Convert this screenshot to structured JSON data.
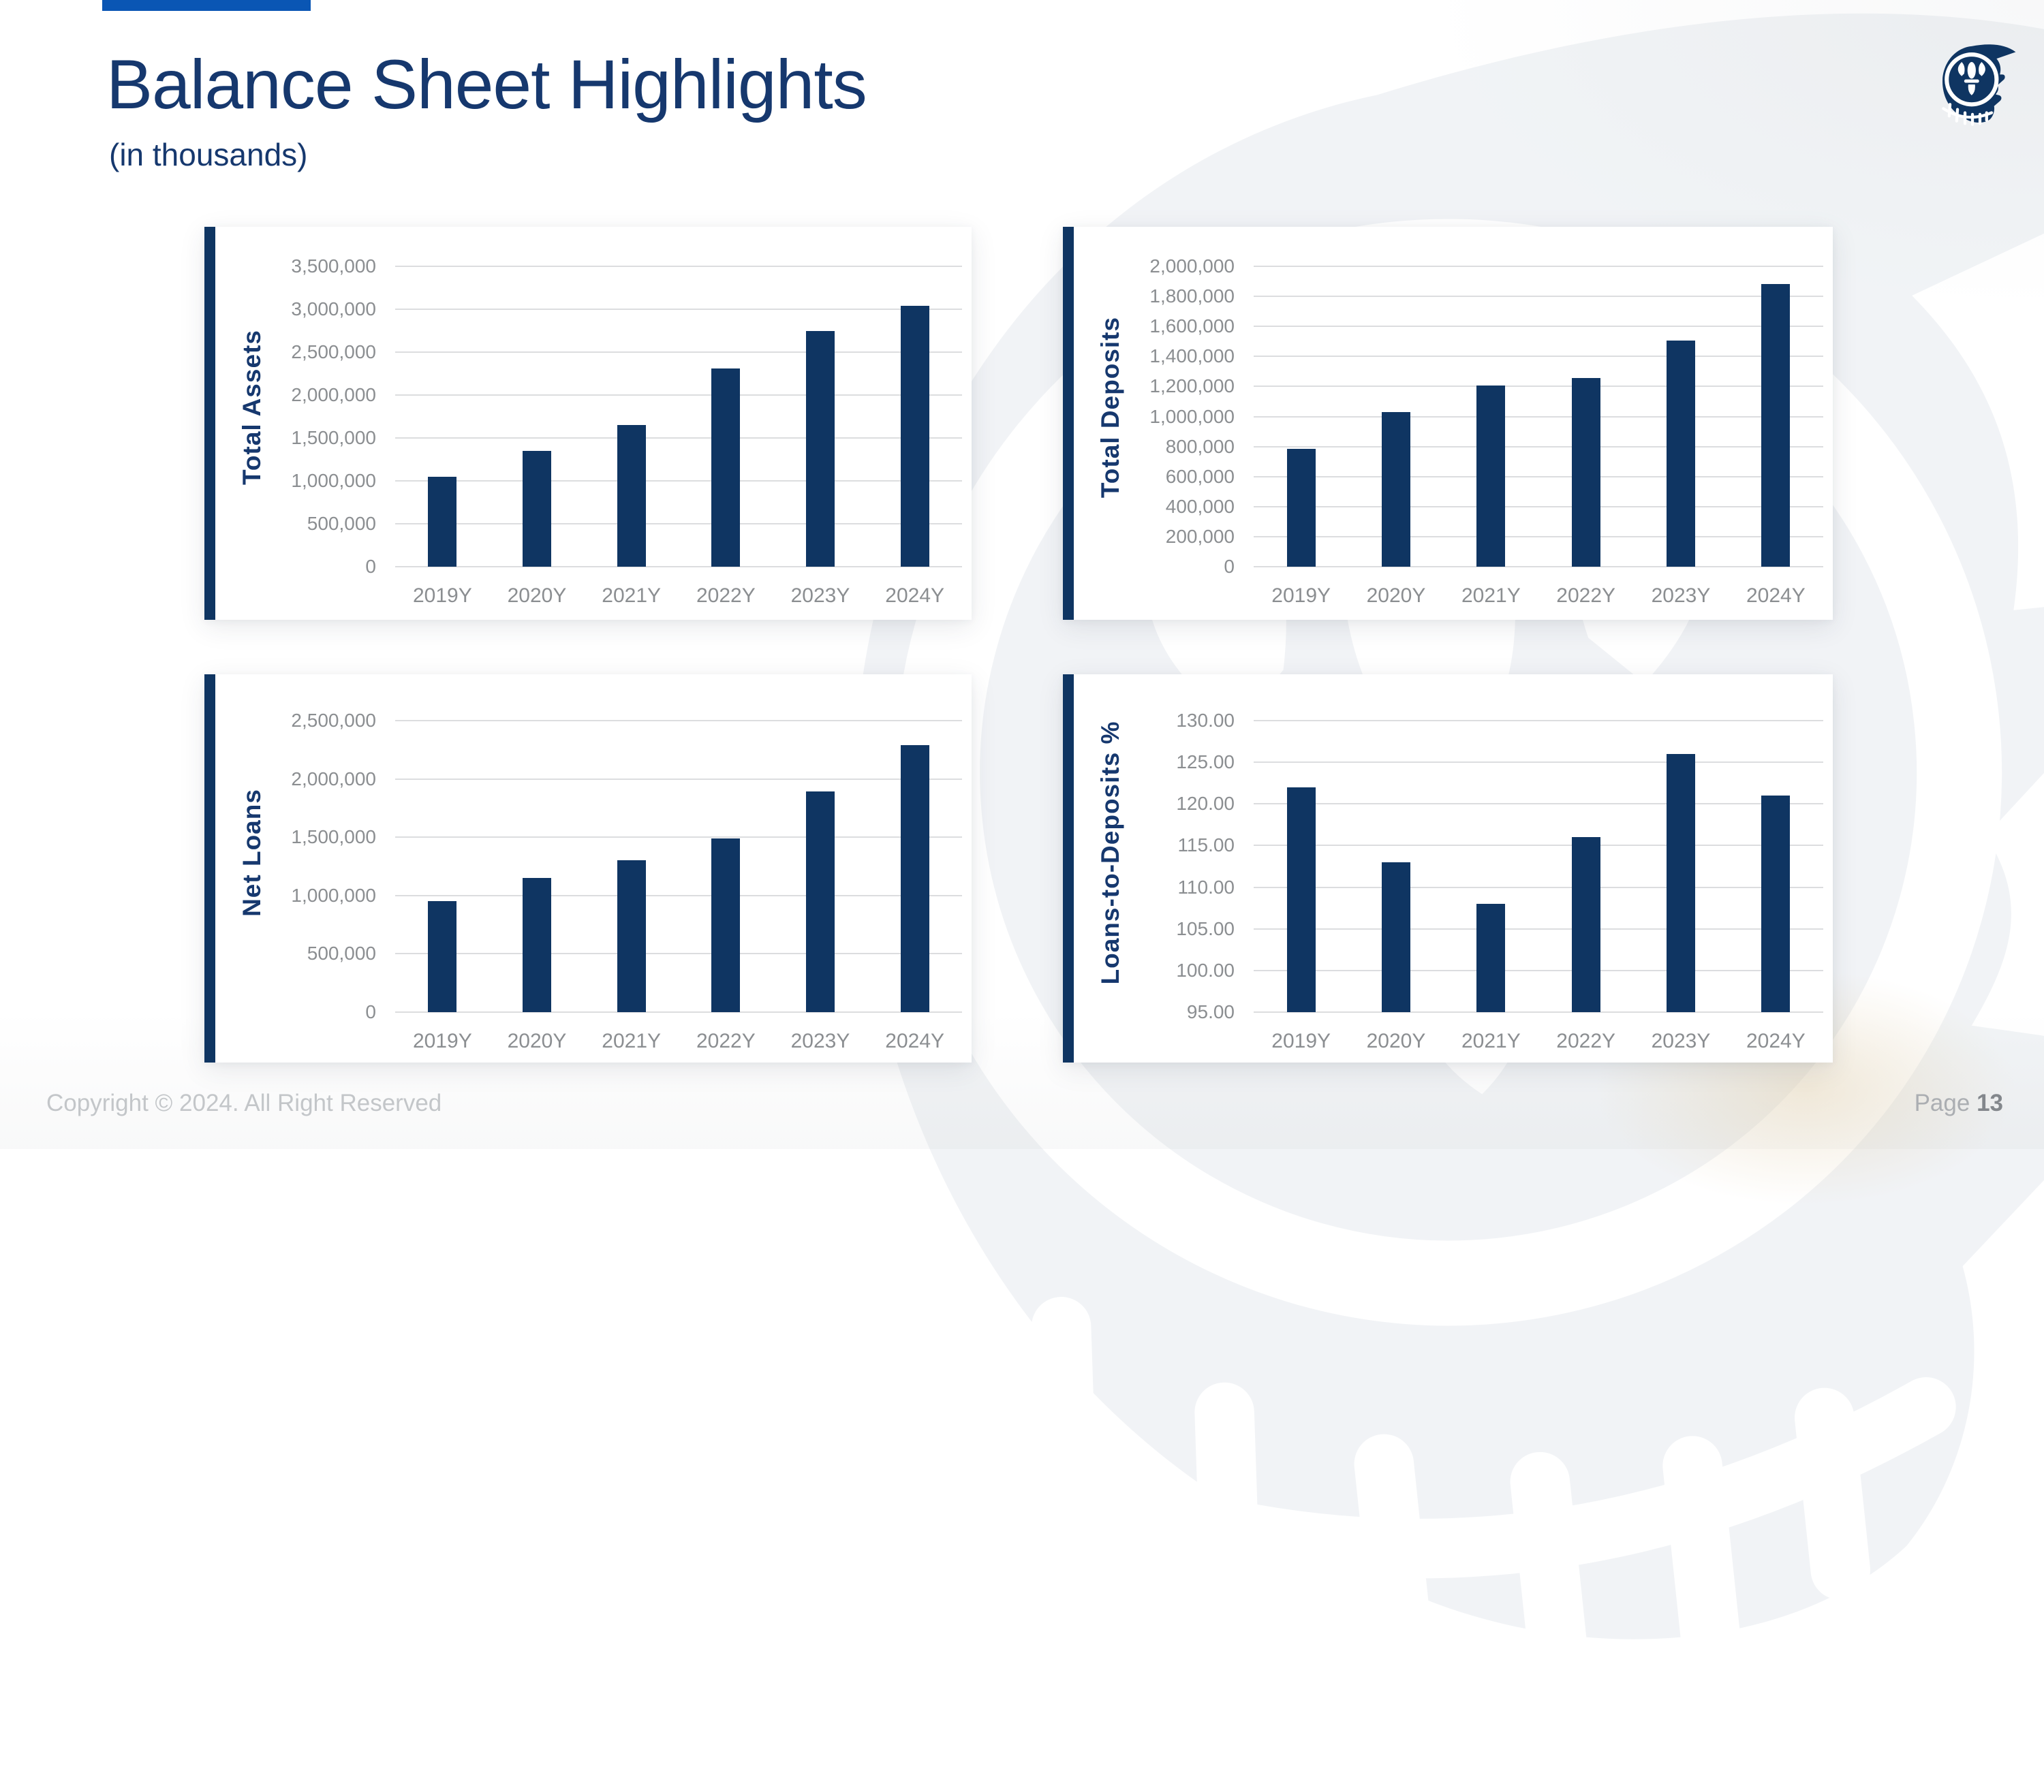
{
  "header": {
    "title": "Balance Sheet Highlights",
    "subtitle": "(in thousands)",
    "logo_icon": "knight-head-logo"
  },
  "footer": {
    "copyright": "Copyright © 2024. All Right Reserved",
    "page_label": "Page",
    "page_number": "13"
  },
  "colors": {
    "bar_navy": "#0F3562",
    "title_navy": "#16386E",
    "accent_blue": "#0A56B4",
    "tick_gray": "#8B8E91",
    "gridline_gray": "#DCDDDF",
    "footer_gray": "#C3C6C9",
    "card_background": "#FFFFFF"
  },
  "chart_data": [
    {
      "type": "bar",
      "title": "",
      "ylabel": "Total Assets",
      "xlabel": "",
      "categories": [
        "2019Y",
        "2020Y",
        "2021Y",
        "2022Y",
        "2023Y",
        "2024Y"
      ],
      "values": [
        1050000,
        1350000,
        1650000,
        2310000,
        2750000,
        3040000
      ],
      "ylim": [
        0,
        3500000
      ],
      "ytick_values": [
        3500000,
        3000000,
        2500000,
        2000000,
        1500000,
        1000000,
        500000,
        0
      ],
      "ytick_labels": [
        "3,500,000",
        "3,000,000",
        "2,500,000",
        "2,000,000",
        "1,500,000",
        "1,000,000",
        "500,000",
        "0"
      ],
      "grid": true,
      "legend": "none"
    },
    {
      "type": "bar",
      "title": "",
      "ylabel": "Total Deposits",
      "xlabel": "",
      "categories": [
        "2019Y",
        "2020Y",
        "2021Y",
        "2022Y",
        "2023Y",
        "2024Y"
      ],
      "values": [
        785000,
        1030000,
        1205000,
        1255000,
        1505000,
        1880000
      ],
      "ylim": [
        0,
        2000000
      ],
      "ytick_values": [
        2000000,
        1800000,
        1600000,
        1400000,
        1200000,
        1000000,
        800000,
        600000,
        400000,
        200000,
        0
      ],
      "ytick_labels": [
        "2,000,000",
        "1,800,000",
        "1,600,000",
        "1,400,000",
        "1,200,000",
        "1,000,000",
        "800,000",
        "600,000",
        "400,000",
        "200,000",
        "0"
      ],
      "grid": true,
      "legend": "none"
    },
    {
      "type": "bar",
      "title": "",
      "ylabel": "Net Loans",
      "xlabel": "",
      "categories": [
        "2019Y",
        "2020Y",
        "2021Y",
        "2022Y",
        "2023Y",
        "2024Y"
      ],
      "values": [
        950000,
        1150000,
        1300000,
        1490000,
        1895000,
        2290000
      ],
      "ylim": [
        0,
        2500000
      ],
      "ytick_values": [
        2500000,
        2000000,
        1500000,
        1000000,
        500000,
        0
      ],
      "ytick_labels": [
        "2,500,000",
        "2,000,000",
        "1,500,000",
        "1,000,000",
        "500,000",
        "0"
      ],
      "grid": true,
      "legend": "none"
    },
    {
      "type": "bar",
      "title": "",
      "ylabel": "Loans-to-Deposits %",
      "xlabel": "",
      "categories": [
        "2019Y",
        "2020Y",
        "2021Y",
        "2022Y",
        "2023Y",
        "2024Y"
      ],
      "values": [
        122,
        113,
        108,
        116,
        126,
        121
      ],
      "ylim": [
        95,
        130
      ],
      "ytick_values": [
        130,
        125,
        120,
        115,
        110,
        105,
        100,
        95
      ],
      "ytick_labels": [
        "130.00",
        "125.00",
        "120.00",
        "115.00",
        "110.00",
        "105.00",
        "100.00",
        "95.00"
      ],
      "grid": true,
      "legend": "none"
    }
  ]
}
